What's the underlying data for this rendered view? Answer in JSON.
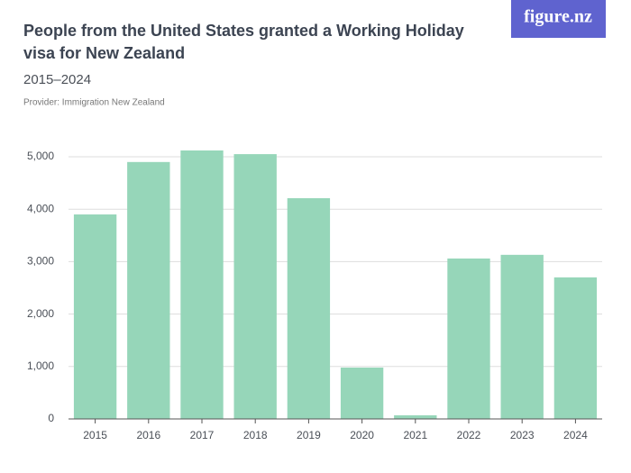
{
  "chart_data": {
    "type": "bar",
    "title": "People from the United States granted a Working Holiday visa for New Zealand",
    "subtitle": "2015–2024",
    "source": "Provider: Immigration New Zealand",
    "brand": "figure.nz",
    "categories": [
      "2015",
      "2016",
      "2017",
      "2018",
      "2019",
      "2020",
      "2021",
      "2022",
      "2023",
      "2024"
    ],
    "values": [
      3900,
      4900,
      5120,
      5050,
      4210,
      980,
      70,
      3060,
      3130,
      2700
    ],
    "color": "#96d6b9",
    "ylim": [
      0,
      5000
    ],
    "yticks": [
      0,
      {
        "value": 1000,
        "label": "1,000"
      },
      {
        "value": 2000,
        "label": "2,000"
      },
      {
        "value": 3000,
        "label": "3,000"
      },
      {
        "value": 4000,
        "label": "4,000"
      },
      {
        "value": 5000,
        "label": "5,000"
      }
    ],
    "grid": true
  }
}
